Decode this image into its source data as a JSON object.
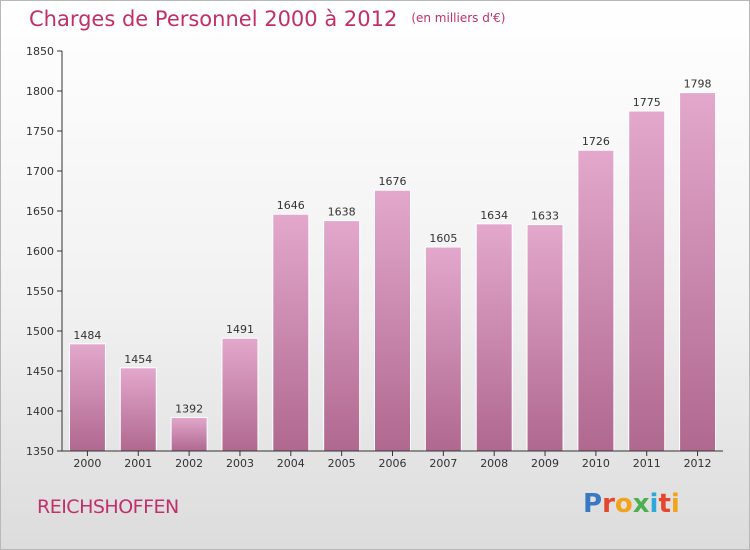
{
  "title": "Charges de Personnel 2000 à 2012",
  "subtitle": "(en milliers d'€)",
  "city": "REICHSHOFFEN",
  "logo": {
    "text": "Proxiti",
    "colors": [
      "#3b78c3",
      "#e6462d",
      "#f2a31b",
      "#4caf50",
      "#2ea8d8",
      "#e6462d",
      "#f2a31b"
    ]
  },
  "colors": {
    "bar_top": "#e3a8cc",
    "bar_bottom": "#b0688f",
    "title": "#c0306a"
  },
  "chart_data": {
    "type": "bar",
    "categories": [
      "2000",
      "2001",
      "2002",
      "2003",
      "2004",
      "2005",
      "2006",
      "2007",
      "2008",
      "2009",
      "2010",
      "2011",
      "2012"
    ],
    "values": [
      1484,
      1454,
      1392,
      1491,
      1646,
      1638,
      1676,
      1605,
      1634,
      1633,
      1726,
      1775,
      1798
    ],
    "ylim": [
      1350,
      1850
    ],
    "yticks": [
      1350,
      1400,
      1450,
      1500,
      1550,
      1600,
      1650,
      1700,
      1750,
      1800,
      1850
    ],
    "grid": false,
    "legend": "none"
  }
}
